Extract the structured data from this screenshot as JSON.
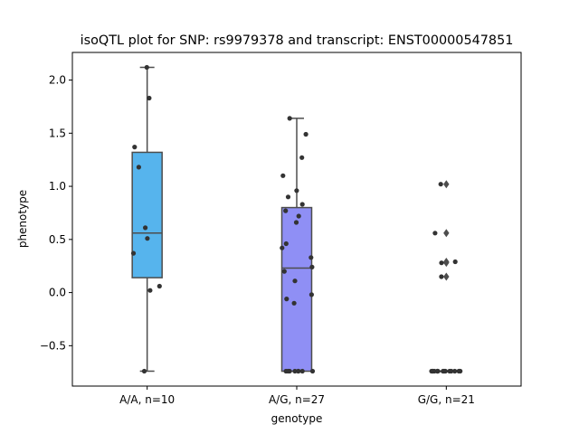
{
  "chart_data": {
    "type": "box",
    "title": "isoQTL plot for SNP: rs9979378 and transcript: ENST00000547851",
    "xlabel": "genotype",
    "ylabel": "phenotype",
    "categories": [
      "A/A, n=10",
      "A/G, n=27",
      "G/G, n=21"
    ],
    "ylim": [
      -0.88,
      2.26
    ],
    "yticks": [
      -0.5,
      0.0,
      0.5,
      1.0,
      1.5,
      2.0
    ],
    "ytick_labels": [
      "−0.5",
      "0.0",
      "0.5",
      "1.0",
      "1.5",
      "2.0"
    ],
    "colors": [
      "#56b4ed",
      "#8f8ff5",
      "#d49ff2"
    ],
    "box_edge_color": "#4d4d4d",
    "point_color": "#333333",
    "boxes": [
      {
        "q1": 0.14,
        "median": 0.56,
        "q3": 1.32,
        "whisker_low": -0.74,
        "whisker_high": 2.12,
        "fliers": []
      },
      {
        "q1": -0.74,
        "median": 0.23,
        "q3": 0.8,
        "whisker_low": -0.74,
        "whisker_high": 1.64,
        "fliers": []
      },
      {
        "q1": -0.74,
        "median": -0.74,
        "q3": -0.74,
        "whisker_low": -0.74,
        "whisker_high": -0.74,
        "fliers": [
          1.02,
          0.56,
          0.29,
          0.28,
          0.15
        ]
      }
    ],
    "points": [
      [
        2.12,
        1.83,
        1.37,
        1.18,
        0.61,
        0.51,
        0.37,
        0.06,
        0.02,
        -0.74
      ],
      [
        1.64,
        1.49,
        1.27,
        1.1,
        0.96,
        0.9,
        0.83,
        0.77,
        0.72,
        0.66,
        0.46,
        0.42,
        0.33,
        0.24,
        0.2,
        0.11,
        -0.02,
        -0.06,
        -0.1,
        -0.74,
        -0.74,
        -0.74,
        -0.74,
        -0.74,
        -0.74,
        -0.74,
        -0.74
      ],
      [
        1.02,
        0.56,
        0.29,
        0.28,
        0.15,
        -0.74,
        -0.74,
        -0.74,
        -0.74,
        -0.74,
        -0.74,
        -0.74,
        -0.74,
        -0.74,
        -0.74,
        -0.74,
        -0.74,
        -0.74,
        -0.74,
        -0.74,
        -0.74
      ]
    ]
  }
}
